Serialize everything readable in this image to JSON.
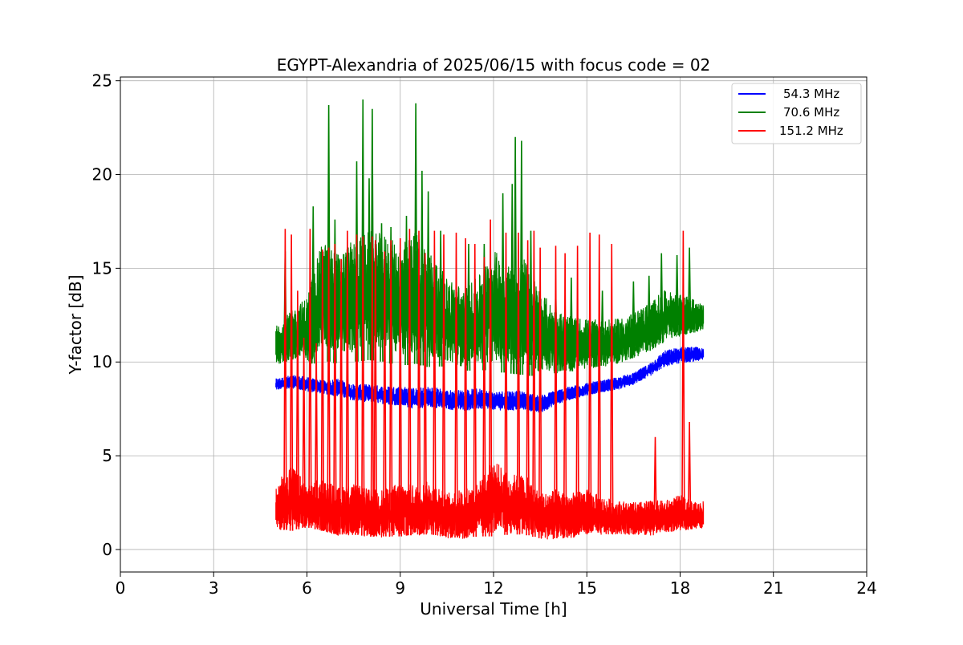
{
  "chart_data": {
    "type": "line",
    "title": "EGYPT-Alexandria of 2025/06/15 with focus code = 02",
    "xlabel": "Universal Time [h]",
    "ylabel": "Y-factor [dB]",
    "xlim": [
      0,
      24
    ],
    "ylim": [
      -1.2,
      25.2
    ],
    "xticks": [
      0,
      3,
      6,
      9,
      12,
      15,
      18,
      21,
      24
    ],
    "xtick_labels": [
      "0",
      "3",
      "6",
      "9",
      "12",
      "15",
      "18",
      "21",
      "24"
    ],
    "yticks": [
      0,
      5,
      10,
      15,
      20,
      25
    ],
    "ytick_labels": [
      "0",
      "5",
      "10",
      "15",
      "20",
      "25"
    ],
    "grid": true,
    "legend_position": "top-right",
    "series": [
      {
        "name": "54.3 MHz",
        "color": "#0000ff",
        "x": [
          5.0,
          5.5,
          6.0,
          6.5,
          7.0,
          7.5,
          8.0,
          8.5,
          9.0,
          9.5,
          10.0,
          10.5,
          11.0,
          11.5,
          12.0,
          12.5,
          13.0,
          13.5,
          14.0,
          14.5,
          15.0,
          15.5,
          16.0,
          16.5,
          17.0,
          17.5,
          18.0,
          18.5,
          18.75
        ],
        "y_low": [
          8.4,
          8.5,
          8.3,
          8.2,
          8.0,
          7.8,
          7.7,
          7.6,
          7.5,
          7.3,
          7.4,
          7.3,
          7.2,
          7.3,
          7.3,
          7.2,
          7.3,
          7.1,
          7.6,
          7.9,
          8.1,
          8.3,
          8.4,
          8.7,
          9.1,
          9.6,
          9.8,
          9.9,
          10.0
        ],
        "y_high": [
          9.1,
          9.3,
          9.2,
          9.0,
          9.1,
          8.8,
          8.8,
          8.7,
          8.7,
          8.6,
          8.7,
          8.5,
          8.5,
          8.6,
          8.4,
          8.5,
          8.4,
          8.2,
          8.5,
          8.7,
          8.9,
          9.0,
          9.2,
          9.4,
          9.9,
          10.6,
          10.8,
          10.8,
          10.7
        ]
      },
      {
        "name": "70.6 MHz",
        "color": "#008000",
        "x": [
          5.0,
          5.5,
          6.0,
          6.5,
          7.0,
          7.5,
          8.0,
          8.5,
          9.0,
          9.5,
          10.0,
          10.5,
          11.0,
          11.5,
          12.0,
          12.5,
          13.0,
          13.5,
          14.0,
          14.5,
          15.0,
          15.5,
          16.0,
          16.5,
          17.0,
          17.5,
          18.0,
          18.5,
          18.75
        ],
        "y_low": [
          9.5,
          9.6,
          9.3,
          9.6,
          9.4,
          9.5,
          9.6,
          9.5,
          9.3,
          9.4,
          9.2,
          9.3,
          9.0,
          9.1,
          9.0,
          8.9,
          8.8,
          8.7,
          8.9,
          9.0,
          9.2,
          9.3,
          9.5,
          9.8,
          10.1,
          10.6,
          11.0,
          11.3,
          11.5
        ],
        "y_high": [
          12.0,
          12.7,
          13.5,
          16.5,
          15.8,
          16.5,
          17.0,
          16.8,
          16.2,
          17.0,
          15.8,
          14.5,
          14.0,
          14.5,
          16.0,
          15.2,
          15.5,
          13.8,
          12.8,
          12.4,
          12.3,
          12.2,
          12.3,
          12.6,
          13.2,
          13.8,
          13.6,
          13.3,
          13.0
        ],
        "spikes": [
          [
            5.3,
            15.9
          ],
          [
            6.2,
            18.3
          ],
          [
            6.7,
            23.7
          ],
          [
            6.9,
            17.6
          ],
          [
            7.6,
            20.7
          ],
          [
            7.8,
            24.0
          ],
          [
            8.0,
            19.8
          ],
          [
            8.1,
            23.5
          ],
          [
            8.4,
            17.4
          ],
          [
            8.7,
            17.2
          ],
          [
            9.2,
            17.8
          ],
          [
            9.5,
            23.8
          ],
          [
            9.7,
            20.2
          ],
          [
            9.9,
            19.1
          ],
          [
            10.3,
            17.0
          ],
          [
            11.2,
            16.3
          ],
          [
            11.7,
            16.3
          ],
          [
            12.3,
            19.0
          ],
          [
            12.6,
            19.5
          ],
          [
            12.7,
            22.0
          ],
          [
            12.9,
            21.8
          ],
          [
            13.2,
            17.0
          ],
          [
            14.0,
            14.0
          ],
          [
            14.5,
            14.5
          ],
          [
            15.5,
            13.8
          ],
          [
            16.5,
            14.3
          ],
          [
            17.0,
            14.6
          ],
          [
            17.4,
            15.8
          ],
          [
            17.9,
            15.7
          ],
          [
            18.3,
            16.1
          ]
        ]
      },
      {
        "name": "151.2 MHz",
        "color": "#ff0000",
        "x": [
          5.0,
          5.5,
          6.0,
          6.5,
          7.0,
          7.5,
          8.0,
          8.5,
          9.0,
          9.5,
          10.0,
          10.5,
          11.0,
          11.5,
          12.0,
          12.5,
          13.0,
          13.5,
          14.0,
          14.5,
          15.0,
          15.5,
          16.0,
          16.5,
          17.0,
          17.5,
          18.0,
          18.5,
          18.75
        ],
        "y_low": [
          0.6,
          0.5,
          0.7,
          0.5,
          0.3,
          0.3,
          0.2,
          0.2,
          0.2,
          0.3,
          0.3,
          0.2,
          0.1,
          0.2,
          0.2,
          0.3,
          0.3,
          0.1,
          0.1,
          0.2,
          0.4,
          0.4,
          0.5,
          0.5,
          0.4,
          0.6,
          0.7,
          0.8,
          0.9
        ],
        "y_high": [
          3.5,
          4.5,
          3.5,
          3.8,
          3.3,
          3.5,
          3.2,
          3.2,
          3.6,
          3.4,
          3.7,
          3.0,
          3.2,
          3.5,
          4.8,
          4.0,
          4.0,
          3.0,
          3.2,
          3.0,
          3.2,
          2.8,
          2.6,
          2.5,
          2.6,
          2.6,
          2.9,
          2.5,
          2.6
        ],
        "spikes": [
          [
            5.3,
            17.1
          ],
          [
            5.5,
            16.8
          ],
          [
            5.7,
            13.8
          ],
          [
            5.9,
            11.3
          ],
          [
            6.1,
            17.1
          ],
          [
            6.3,
            11.0
          ],
          [
            6.5,
            16.0
          ],
          [
            6.7,
            16.1
          ],
          [
            6.9,
            16.3
          ],
          [
            7.1,
            15.5
          ],
          [
            7.3,
            17.0
          ],
          [
            7.6,
            16.8
          ],
          [
            7.8,
            16.7
          ],
          [
            8.1,
            16.7
          ],
          [
            8.2,
            16.5
          ],
          [
            8.5,
            15.9
          ],
          [
            8.7,
            16.5
          ],
          [
            9.0,
            16.6
          ],
          [
            9.3,
            17.1
          ],
          [
            9.6,
            17.0
          ],
          [
            9.8,
            15.8
          ],
          [
            10.1,
            17.0
          ],
          [
            10.4,
            16.8
          ],
          [
            10.8,
            16.9
          ],
          [
            11.1,
            16.6
          ],
          [
            11.4,
            16.3
          ],
          [
            11.7,
            15.6
          ],
          [
            11.9,
            17.6
          ],
          [
            12.4,
            16.9
          ],
          [
            12.8,
            16.9
          ],
          [
            13.1,
            16.5
          ],
          [
            13.3,
            17.0
          ],
          [
            13.5,
            16.1
          ],
          [
            14.0,
            16.2
          ],
          [
            14.3,
            15.8
          ],
          [
            14.7,
            16.2
          ],
          [
            15.1,
            16.9
          ],
          [
            15.4,
            16.8
          ],
          [
            15.8,
            16.3
          ],
          [
            17.2,
            6.0
          ],
          [
            18.1,
            17.0
          ],
          [
            18.3,
            6.8
          ]
        ]
      }
    ]
  }
}
